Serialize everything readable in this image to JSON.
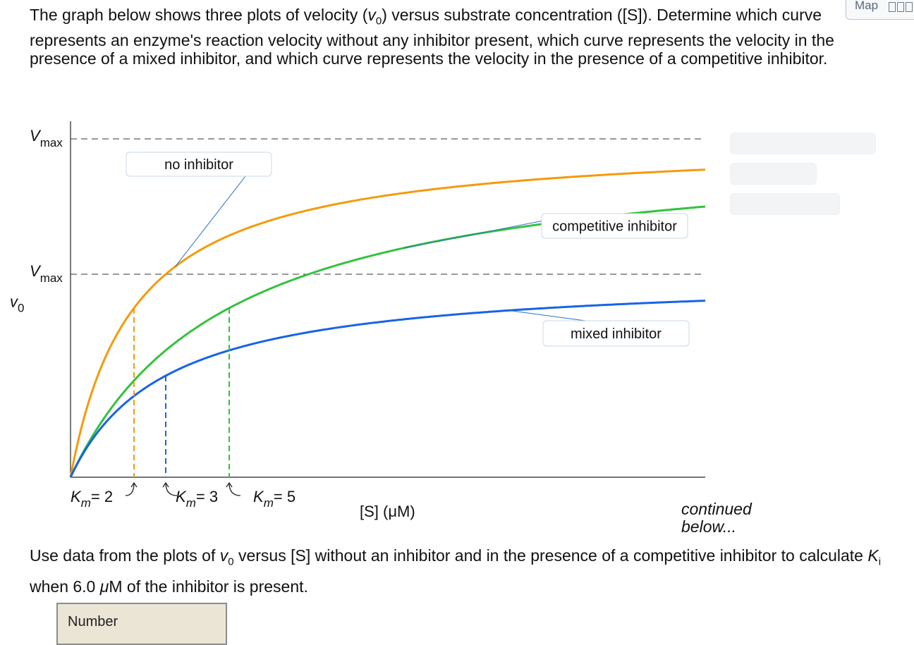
{
  "question": {
    "part1": "The graph below shows three plots of velocity (",
    "v0_sym": "v",
    "v0_sub": "0",
    "part2": ") versus substrate concentration ([S]). Determine which curve represents an enzyme's reaction velocity without any inhibitor present, which curve represents the velocity in the presence of a mixed inhibitor, and which curve represents the velocity in the presence of a competitive inhibitor."
  },
  "map_tab": {
    "label": "Map"
  },
  "chart_data": {
    "type": "line",
    "x_range": [
      0,
      20
    ],
    "y_range": [
      0,
      1.0
    ],
    "xlabel": "[S] (μM)",
    "ylabel": "v0",
    "vmax_lines": [
      {
        "label_main": "V",
        "label_sub": "max",
        "y": 1.0
      },
      {
        "label_main": "V",
        "label_sub": "max",
        "y": 0.6
      }
    ],
    "series": [
      {
        "name": "no inhibitor",
        "vmax": 1.0,
        "km": 2,
        "color": "#f59a0b"
      },
      {
        "name": "competitive inhibitor",
        "vmax": 1.0,
        "km": 5,
        "color": "#33c23b"
      },
      {
        "name": "mixed inhibitor",
        "vmax": 0.6,
        "km": 3,
        "color": "#1763e6"
      }
    ],
    "km_labels": [
      {
        "main": "K",
        "sub": "m",
        "text": "= 2",
        "series": 0
      },
      {
        "main": "K",
        "sub": "m",
        "text": "= 3",
        "series": 2
      },
      {
        "main": "K",
        "sub": "m",
        "text": "= 5",
        "series": 1
      }
    ],
    "callouts": [
      "no inhibitor",
      "competitive inhibitor",
      "mixed inhibitor"
    ]
  },
  "continued": "continued below...",
  "prompt2": {
    "part1": "Use data from the plots of ",
    "v_sym": "v",
    "v_sub": "0",
    "part2": " versus [S] without an inhibitor and in the presence of a competitive inhibitor to calculate ",
    "k_sym": "K",
    "k_sub": "i",
    "part3": " when 6.0 ",
    "mu": "μ",
    "part4": "M of the inhibitor is present."
  },
  "answer": {
    "placeholder": "Number"
  }
}
